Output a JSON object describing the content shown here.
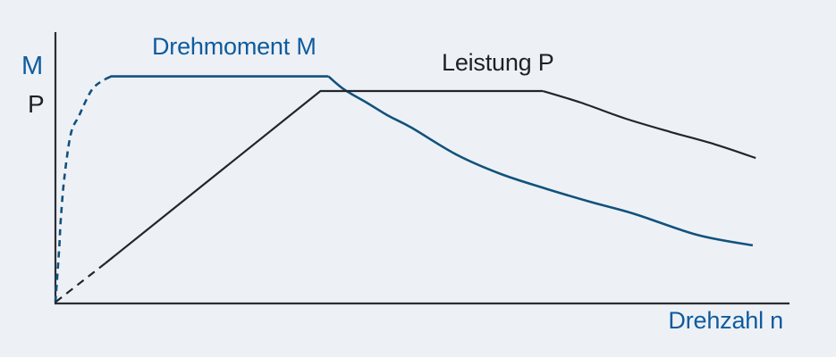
{
  "chart_data": {
    "type": "line",
    "title": "",
    "xlabel": "Drehzahl n",
    "ylabels": [
      "M",
      "P"
    ],
    "x_range": [
      0,
      100
    ],
    "y_range": [
      0,
      100
    ],
    "grid": false,
    "legend": "inline-labels",
    "background_color": "#edf1f6",
    "axis_color": "#2a2e34",
    "series": [
      {
        "name": "Drehmoment M",
        "color": "#12527c",
        "label_color": "#0f5b9d",
        "segments": [
          {
            "style": "dashed",
            "smooth": true,
            "points": [
              [
                0,
                0.5
              ],
              [
                0.5,
                19.7
              ],
              [
                0.7,
                29.6
              ],
              [
                1.2,
                46.1
              ],
              [
                2.1,
                62.5
              ],
              [
                3.2,
                69.1
              ],
              [
                5.0,
                78.9
              ],
              [
                6.8,
                82.7
              ]
            ]
          },
          {
            "style": "solid",
            "smooth": false,
            "points": [
              [
                6.8,
                82.7
              ],
              [
                7.6,
                83.7
              ],
              [
                37.2,
                83.7
              ]
            ]
          },
          {
            "style": "solid",
            "smooth": true,
            "points": [
              [
                37.2,
                83.7
              ],
              [
                39.3,
                78.9
              ],
              [
                42.4,
                74.0
              ],
              [
                45.4,
                69.1
              ],
              [
                48.5,
                64.8
              ],
              [
                54.6,
                54.9
              ],
              [
                60.7,
                47.7
              ],
              [
                66.7,
                42.4
              ],
              [
                72.8,
                37.5
              ],
              [
                78.9,
                33.0
              ],
              [
                87.4,
                25.3
              ],
              [
                95.0,
                21.4
              ]
            ]
          }
        ]
      },
      {
        "name": "Leistung P",
        "color": "#22262b",
        "label_color": "#1e2126",
        "segments": [
          {
            "style": "dashed",
            "smooth": false,
            "points": [
              [
                0,
                0.5
              ],
              [
                6.8,
                14.8
              ]
            ]
          },
          {
            "style": "solid",
            "smooth": false,
            "points": [
              [
                6.8,
                14.8
              ],
              [
                36.1,
                78.3
              ],
              [
                66.4,
                78.3
              ]
            ]
          },
          {
            "style": "solid",
            "smooth": true,
            "points": [
              [
                66.4,
                78.3
              ],
              [
                71.6,
                74.0
              ],
              [
                77.7,
                68.1
              ],
              [
                83.8,
                63.2
              ],
              [
                89.9,
                58.6
              ],
              [
                95.4,
                53.6
              ]
            ]
          }
        ]
      }
    ]
  }
}
